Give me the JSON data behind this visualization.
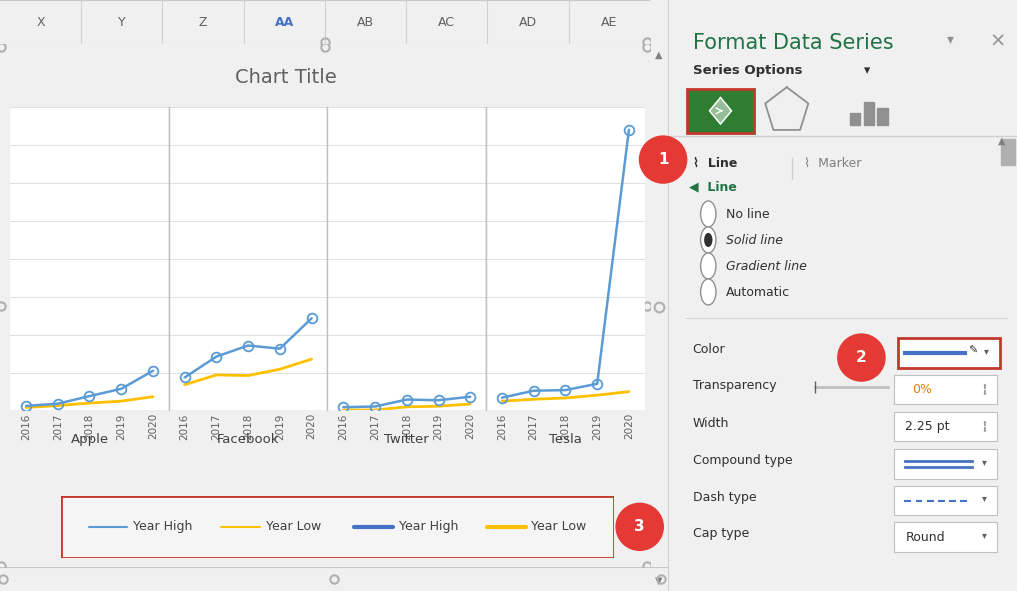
{
  "title": "Chart Title",
  "chart_title_color": "#606060",
  "excel_header_color": "#f2f2f2",
  "excel_header_border_color": "#d0d0d0",
  "excel_col_headers": [
    "X",
    "Y",
    "Z",
    "AA",
    "AB",
    "AC",
    "AD",
    "AE"
  ],
  "panel_labels": [
    "Apple",
    "Facebook",
    "Twitter",
    "Tesla"
  ],
  "years": [
    2016,
    2017,
    2018,
    2019,
    2020
  ],
  "high_color_light": "#5b9bd5",
  "high_color_bold": "#4472c4",
  "low_color": "#ffc000",
  "data": {
    "Apple": {
      "high": [
        27,
        34,
        58,
        81,
        138
      ],
      "low": [
        22,
        28,
        36,
        42,
        56
      ]
    },
    "Facebook": {
      "high": [
        117,
        183,
        218,
        208,
        304
      ],
      "low": [
        94,
        125,
        123,
        143,
        175
      ]
    },
    "Twitter": {
      "high": [
        23,
        25,
        47,
        45,
        56
      ],
      "low": [
        14,
        14,
        24,
        26,
        33
      ]
    },
    "Tesla": {
      "high": [
        53,
        75,
        77,
        97,
        900
      ],
      "low": [
        42,
        48,
        52,
        61,
        72
      ]
    }
  },
  "grid_color": "#e0e0e0",
  "panel_divider_color": "#c0c0c0",
  "right_panel_title": "Format Data Series",
  "right_panel_title_color": "#217346",
  "circle_color": "#e53935",
  "scroll_color": "#b0b0b0",
  "handle_color": "#b0b0b0"
}
